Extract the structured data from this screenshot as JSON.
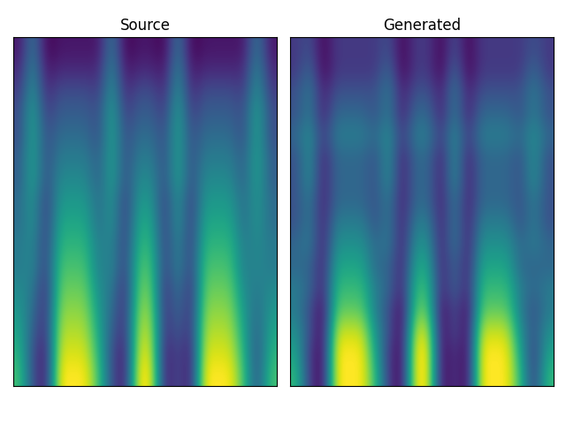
{
  "chart_data": [
    {
      "type": "heatmap",
      "title": "Source",
      "tick_labels": false,
      "cells": [
        [
          0.7,
          0.3,
          0.15,
          0.95,
          0.95,
          0.95,
          0.7,
          0.3,
          0.15,
          0.95,
          0.95,
          0.15,
          0.3,
          0.15,
          0.95,
          0.95,
          0.95,
          0.7,
          0.3,
          0.7
        ],
        [
          0.65,
          0.3,
          0.15,
          0.9,
          0.9,
          0.9,
          0.65,
          0.3,
          0.15,
          0.9,
          0.9,
          0.15,
          0.3,
          0.15,
          0.9,
          0.9,
          0.9,
          0.65,
          0.3,
          0.65
        ],
        [
          0.6,
          0.35,
          0.2,
          0.85,
          0.85,
          0.85,
          0.6,
          0.35,
          0.2,
          0.85,
          0.85,
          0.2,
          0.35,
          0.2,
          0.85,
          0.85,
          0.85,
          0.6,
          0.35,
          0.6
        ],
        [
          0.55,
          0.4,
          0.2,
          0.8,
          0.8,
          0.8,
          0.55,
          0.4,
          0.2,
          0.8,
          0.8,
          0.2,
          0.4,
          0.2,
          0.8,
          0.8,
          0.8,
          0.55,
          0.4,
          0.55
        ],
        [
          0.5,
          0.45,
          0.2,
          0.75,
          0.75,
          0.75,
          0.5,
          0.45,
          0.2,
          0.75,
          0.75,
          0.2,
          0.45,
          0.2,
          0.75,
          0.75,
          0.75,
          0.5,
          0.45,
          0.5
        ],
        [
          0.45,
          0.5,
          0.25,
          0.7,
          0.7,
          0.7,
          0.45,
          0.5,
          0.25,
          0.7,
          0.7,
          0.25,
          0.5,
          0.25,
          0.7,
          0.7,
          0.7,
          0.45,
          0.5,
          0.45
        ],
        [
          0.45,
          0.5,
          0.25,
          0.65,
          0.65,
          0.65,
          0.45,
          0.5,
          0.25,
          0.65,
          0.65,
          0.25,
          0.5,
          0.25,
          0.65,
          0.65,
          0.65,
          0.45,
          0.5,
          0.45
        ],
        [
          0.4,
          0.55,
          0.25,
          0.6,
          0.6,
          0.6,
          0.4,
          0.55,
          0.25,
          0.6,
          0.6,
          0.25,
          0.55,
          0.25,
          0.6,
          0.6,
          0.6,
          0.4,
          0.55,
          0.4
        ],
        [
          0.4,
          0.55,
          0.25,
          0.55,
          0.55,
          0.55,
          0.4,
          0.55,
          0.25,
          0.55,
          0.55,
          0.25,
          0.55,
          0.25,
          0.55,
          0.55,
          0.55,
          0.4,
          0.55,
          0.4
        ],
        [
          0.35,
          0.6,
          0.3,
          0.5,
          0.5,
          0.5,
          0.35,
          0.6,
          0.3,
          0.5,
          0.5,
          0.3,
          0.6,
          0.3,
          0.5,
          0.5,
          0.5,
          0.35,
          0.6,
          0.35
        ],
        [
          0.35,
          0.6,
          0.3,
          0.45,
          0.45,
          0.45,
          0.35,
          0.6,
          0.3,
          0.45,
          0.45,
          0.3,
          0.6,
          0.3,
          0.45,
          0.45,
          0.45,
          0.35,
          0.6,
          0.35
        ],
        [
          0.3,
          0.6,
          0.3,
          0.4,
          0.4,
          0.4,
          0.3,
          0.6,
          0.3,
          0.4,
          0.4,
          0.3,
          0.6,
          0.3,
          0.4,
          0.4,
          0.4,
          0.3,
          0.6,
          0.3
        ],
        [
          0.3,
          0.6,
          0.25,
          0.35,
          0.35,
          0.35,
          0.3,
          0.6,
          0.25,
          0.35,
          0.35,
          0.25,
          0.6,
          0.25,
          0.35,
          0.35,
          0.35,
          0.3,
          0.6,
          0.3
        ],
        [
          0.25,
          0.55,
          0.2,
          0.3,
          0.3,
          0.3,
          0.25,
          0.55,
          0.2,
          0.3,
          0.3,
          0.2,
          0.55,
          0.2,
          0.3,
          0.3,
          0.3,
          0.25,
          0.55,
          0.25
        ],
        [
          0.2,
          0.5,
          0.15,
          0.2,
          0.2,
          0.2,
          0.2,
          0.5,
          0.15,
          0.2,
          0.2,
          0.15,
          0.5,
          0.15,
          0.2,
          0.2,
          0.2,
          0.2,
          0.5,
          0.2
        ],
        [
          0.15,
          0.45,
          0.1,
          0.15,
          0.15,
          0.15,
          0.15,
          0.45,
          0.1,
          0.15,
          0.15,
          0.1,
          0.45,
          0.1,
          0.15,
          0.15,
          0.15,
          0.15,
          0.45,
          0.15
        ]
      ]
    },
    {
      "type": "heatmap",
      "title": "Generated",
      "tick_labels": false,
      "cells": [
        [
          0.65,
          0.35,
          0.25,
          0.85,
          0.85,
          0.85,
          0.65,
          0.35,
          0.25,
          0.85,
          0.85,
          0.25,
          0.35,
          0.25,
          0.85,
          0.85,
          0.85,
          0.65,
          0.35,
          0.65
        ],
        [
          0.6,
          0.35,
          0.25,
          0.85,
          0.85,
          0.85,
          0.6,
          0.35,
          0.25,
          0.85,
          0.85,
          0.25,
          0.35,
          0.25,
          0.85,
          0.85,
          0.85,
          0.6,
          0.35,
          0.6
        ],
        [
          0.55,
          0.4,
          0.25,
          0.8,
          0.8,
          0.8,
          0.55,
          0.4,
          0.25,
          0.8,
          0.8,
          0.25,
          0.4,
          0.25,
          0.8,
          0.8,
          0.8,
          0.55,
          0.4,
          0.55
        ],
        [
          0.5,
          0.4,
          0.25,
          0.7,
          0.7,
          0.7,
          0.5,
          0.4,
          0.25,
          0.7,
          0.7,
          0.25,
          0.4,
          0.25,
          0.7,
          0.7,
          0.7,
          0.5,
          0.4,
          0.5
        ],
        [
          0.5,
          0.45,
          0.3,
          0.65,
          0.65,
          0.65,
          0.5,
          0.45,
          0.3,
          0.65,
          0.65,
          0.3,
          0.45,
          0.3,
          0.65,
          0.65,
          0.65,
          0.5,
          0.45,
          0.5
        ],
        [
          0.45,
          0.45,
          0.3,
          0.6,
          0.6,
          0.6,
          0.45,
          0.45,
          0.3,
          0.6,
          0.6,
          0.3,
          0.45,
          0.3,
          0.6,
          0.6,
          0.6,
          0.45,
          0.45,
          0.45
        ],
        [
          0.45,
          0.5,
          0.3,
          0.55,
          0.55,
          0.55,
          0.45,
          0.5,
          0.3,
          0.55,
          0.55,
          0.3,
          0.5,
          0.3,
          0.55,
          0.55,
          0.55,
          0.45,
          0.5,
          0.45
        ],
        [
          0.4,
          0.5,
          0.3,
          0.5,
          0.5,
          0.5,
          0.4,
          0.5,
          0.3,
          0.5,
          0.5,
          0.3,
          0.5,
          0.3,
          0.5,
          0.5,
          0.5,
          0.4,
          0.5,
          0.4
        ],
        [
          0.4,
          0.5,
          0.3,
          0.45,
          0.45,
          0.45,
          0.4,
          0.5,
          0.3,
          0.45,
          0.45,
          0.3,
          0.5,
          0.3,
          0.45,
          0.45,
          0.45,
          0.4,
          0.5,
          0.4
        ],
        [
          0.4,
          0.55,
          0.3,
          0.45,
          0.45,
          0.45,
          0.4,
          0.55,
          0.3,
          0.45,
          0.45,
          0.3,
          0.55,
          0.3,
          0.45,
          0.45,
          0.45,
          0.4,
          0.55,
          0.4
        ],
        [
          0.4,
          0.55,
          0.3,
          0.45,
          0.45,
          0.45,
          0.4,
          0.55,
          0.3,
          0.45,
          0.45,
          0.3,
          0.55,
          0.3,
          0.45,
          0.45,
          0.45,
          0.4,
          0.55,
          0.4
        ],
        [
          0.45,
          0.55,
          0.35,
          0.5,
          0.5,
          0.5,
          0.45,
          0.55,
          0.35,
          0.5,
          0.5,
          0.35,
          0.55,
          0.35,
          0.5,
          0.5,
          0.5,
          0.45,
          0.55,
          0.45
        ],
        [
          0.4,
          0.5,
          0.3,
          0.45,
          0.45,
          0.45,
          0.4,
          0.5,
          0.3,
          0.45,
          0.45,
          0.3,
          0.5,
          0.3,
          0.45,
          0.45,
          0.45,
          0.4,
          0.5,
          0.4
        ],
        [
          0.4,
          0.5,
          0.3,
          0.4,
          0.4,
          0.4,
          0.4,
          0.5,
          0.3,
          0.4,
          0.4,
          0.3,
          0.5,
          0.3,
          0.4,
          0.4,
          0.4,
          0.4,
          0.5,
          0.4
        ],
        [
          0.35,
          0.45,
          0.25,
          0.35,
          0.35,
          0.35,
          0.35,
          0.45,
          0.25,
          0.35,
          0.35,
          0.25,
          0.45,
          0.25,
          0.35,
          0.35,
          0.35,
          0.35,
          0.45,
          0.35
        ],
        [
          0.35,
          0.4,
          0.25,
          0.35,
          0.35,
          0.35,
          0.35,
          0.4,
          0.25,
          0.35,
          0.35,
          0.25,
          0.4,
          0.25,
          0.35,
          0.35,
          0.35,
          0.35,
          0.4,
          0.35
        ]
      ]
    }
  ]
}
